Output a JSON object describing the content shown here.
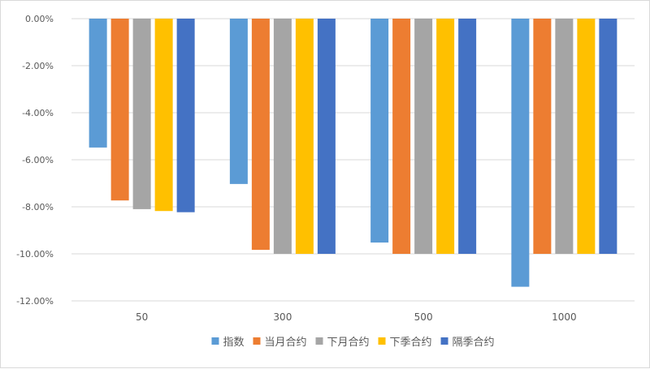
{
  "chart_data": {
    "type": "bar",
    "title": "",
    "xlabel": "",
    "ylabel": "",
    "ylim": [
      -0.12,
      0
    ],
    "y_ticks": [
      {
        "value": 0,
        "label": "0.00%"
      },
      {
        "value": -0.02,
        "label": "-2.00%"
      },
      {
        "value": -0.04,
        "label": "-4.00%"
      },
      {
        "value": -0.06,
        "label": "-6.00%"
      },
      {
        "value": -0.08,
        "label": "-8.00%"
      },
      {
        "value": -0.1,
        "label": "-10.00%"
      },
      {
        "value": -0.12,
        "label": "-12.00%"
      }
    ],
    "categories": [
      "50",
      "300",
      "500",
      "1000"
    ],
    "grid": true,
    "legend_position": "bottom",
    "series": [
      {
        "name": "指数",
        "color": "#5b9bd5",
        "values": [
          -0.0548,
          -0.0703,
          -0.0952,
          -0.114
        ]
      },
      {
        "name": "当月合约",
        "color": "#ed7d31",
        "values": [
          -0.0773,
          -0.0983,
          -0.1,
          -0.1
        ]
      },
      {
        "name": "下月合约",
        "color": "#a5a5a5",
        "values": [
          -0.081,
          -0.1,
          -0.1,
          -0.1
        ]
      },
      {
        "name": "下季合约",
        "color": "#ffc000",
        "values": [
          -0.0818,
          -0.1,
          -0.1,
          -0.1
        ]
      },
      {
        "name": "隔季合约",
        "color": "#4472c4",
        "values": [
          -0.0823,
          -0.1,
          -0.1,
          -0.1
        ]
      }
    ]
  }
}
